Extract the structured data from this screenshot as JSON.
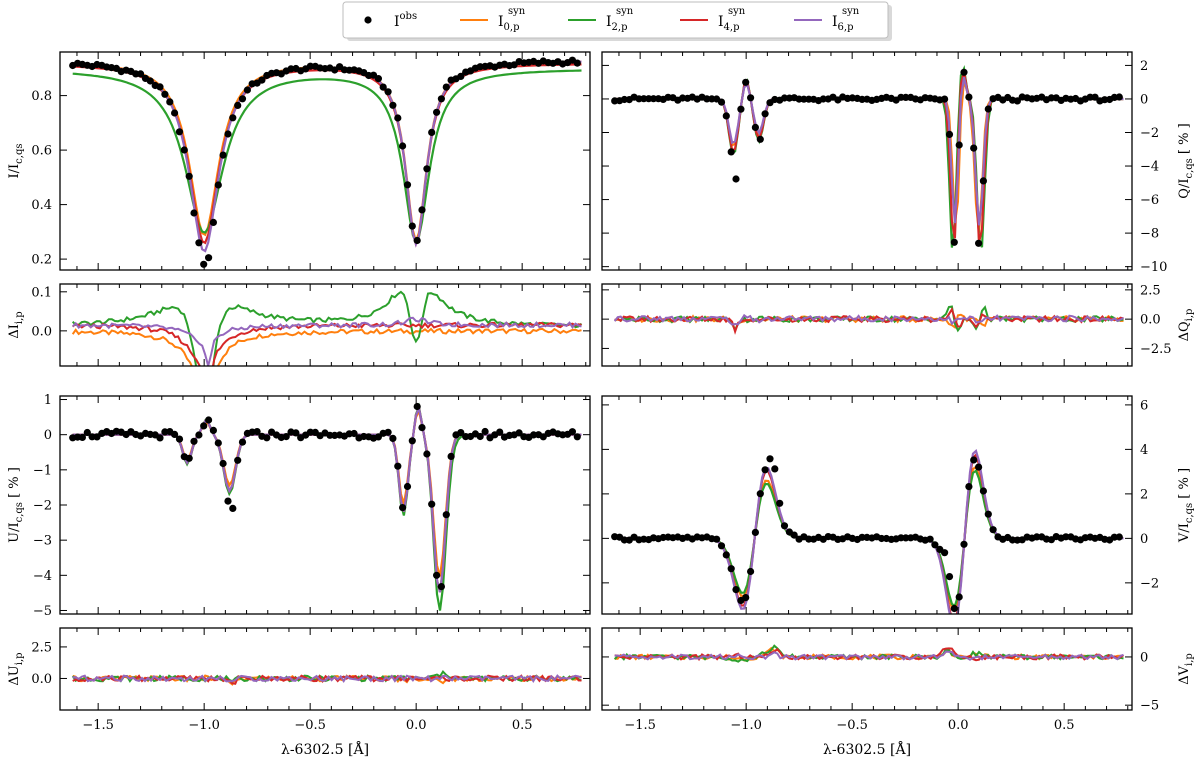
{
  "legend": {
    "placement": "top-center",
    "entries": [
      {
        "label": "I",
        "sup": "obs",
        "sub": "",
        "marker": "dot",
        "color": "#000000"
      },
      {
        "label": "I",
        "sup": "syn",
        "sub": "0,p",
        "marker": "line",
        "color": "#ff7f0e"
      },
      {
        "label": "I",
        "sup": "syn",
        "sub": "2,p",
        "marker": "line",
        "color": "#2ca02c"
      },
      {
        "label": "I",
        "sup": "syn",
        "sub": "4,p",
        "marker": "line",
        "color": "#d62728"
      },
      {
        "label": "I",
        "sup": "syn",
        "sub": "6,p",
        "marker": "line",
        "color": "#9467bd"
      }
    ]
  },
  "chart_data": [
    {
      "id": "I",
      "type": "line",
      "side": "left",
      "role": "profile",
      "ylabel": {
        "main": "I/I",
        "sub": "c,qs",
        "suffix": ""
      },
      "xlim": [
        -1.68,
        0.82
      ],
      "ylim": [
        0.16,
        0.96
      ],
      "yticks": [
        0.2,
        0.4,
        0.6,
        0.8
      ],
      "xticks": [
        -1.5,
        -1.0,
        -0.5,
        0.0,
        0.5
      ],
      "xticklabels": [],
      "lines": [
        {
          "kind": "absorption",
          "center": -1.0,
          "width": 0.085,
          "depths": {
            "obs": 0.73,
            "syn0": 0.64,
            "syn2": 0.6,
            "syn4": 0.66,
            "syn6": 0.7
          }
        },
        {
          "kind": "absorption",
          "center": 0.0,
          "width": 0.06,
          "depths": {
            "obs": 0.66,
            "syn0": 0.66,
            "syn2": 0.63,
            "syn4": 0.66,
            "syn6": 0.67
          }
        }
      ],
      "baselines": {
        "obs": 0.93,
        "syn0": 0.93,
        "syn2": 0.9,
        "syn4": 0.92,
        "syn6": 0.93
      }
    },
    {
      "id": "Q",
      "type": "line",
      "side": "right",
      "role": "profile",
      "ylabel": {
        "main": "Q/I",
        "sub": "c,qs",
        "suffix": " [ % ]"
      },
      "xlim": [
        -1.68,
        0.82
      ],
      "ylim": [
        -10.2,
        2.8
      ],
      "yticks": [
        -10,
        -8,
        -6,
        -4,
        -2,
        0,
        2
      ],
      "xticks": [
        -1.5,
        -1.0,
        -0.5,
        0.0,
        0.5
      ],
      "xticklabels": []
    },
    {
      "id": "dI",
      "type": "line",
      "side": "left",
      "role": "residual",
      "ylabel": {
        "main": "ΔI",
        "sub": "i,p",
        "suffix": ""
      },
      "xlim": [
        -1.68,
        0.82
      ],
      "ylim": [
        -0.09,
        0.12
      ],
      "yticks": [
        0.0,
        0.1
      ],
      "yticklabels": [
        "0.0",
        "0.1"
      ],
      "xticks": [
        -1.5,
        -1.0,
        -0.5,
        0.0,
        0.5
      ],
      "xticklabels": []
    },
    {
      "id": "dQ",
      "type": "line",
      "side": "right",
      "role": "residual",
      "ylabel": {
        "main": "ΔQ",
        "sub": "i,p",
        "suffix": ""
      },
      "xlim": [
        -1.68,
        0.82
      ],
      "ylim": [
        -4.0,
        3.0
      ],
      "yticks": [
        -2.5,
        0.0,
        2.5
      ],
      "yticklabels": [
        "−2.5",
        "0.0",
        "2.5"
      ],
      "xticks": [
        -1.5,
        -1.0,
        -0.5,
        0.0,
        0.5
      ],
      "xticklabels": []
    },
    {
      "id": "U",
      "type": "line",
      "side": "left",
      "role": "profile",
      "ylabel": {
        "main": "U/I",
        "sub": "c,qs",
        "suffix": " [ % ]"
      },
      "xlim": [
        -1.68,
        0.82
      ],
      "ylim": [
        -5.1,
        1.1
      ],
      "yticks": [
        -5,
        -4,
        -3,
        -2,
        -1,
        0,
        1
      ],
      "xticks": [
        -1.5,
        -1.0,
        -0.5,
        0.0,
        0.5
      ],
      "xticklabels": []
    },
    {
      "id": "V",
      "type": "line",
      "side": "right",
      "role": "profile",
      "ylabel": {
        "main": "V/I",
        "sub": "c,qs",
        "suffix": " [ % ]"
      },
      "xlim": [
        -1.68,
        0.82
      ],
      "ylim": [
        -3.4,
        6.4
      ],
      "yticks": [
        -2,
        0,
        2,
        4,
        6
      ],
      "xticks": [
        -1.5,
        -1.0,
        -0.5,
        0.0,
        0.5
      ],
      "xticklabels": []
    },
    {
      "id": "dU",
      "type": "line",
      "side": "left",
      "role": "residual",
      "ylabel": {
        "main": "ΔU",
        "sub": "i,p",
        "suffix": ""
      },
      "xlim": [
        -1.68,
        0.82
      ],
      "ylim": [
        -2.5,
        4.0
      ],
      "yticks": [
        0.0,
        2.5
      ],
      "yticklabels": [
        "0.0",
        "2.5"
      ],
      "xticks": [
        -1.5,
        -1.0,
        -0.5,
        0.0,
        0.5
      ],
      "xticklabels": [
        "−1.5",
        "−1.0",
        "−0.5",
        "0.0",
        "0.5"
      ],
      "xlabel": "λ-6302.5 [Å]"
    },
    {
      "id": "dV",
      "type": "line",
      "side": "right",
      "role": "residual",
      "ylabel": {
        "main": "ΔV",
        "sub": "i,p",
        "suffix": ""
      },
      "xlim": [
        -1.68,
        0.82
      ],
      "ylim": [
        -5.5,
        3.0
      ],
      "yticks": [
        -5,
        0
      ],
      "yticklabels": [
        "−5",
        "0"
      ],
      "xticks": [
        -1.5,
        -1.0,
        -0.5,
        0.0,
        0.5
      ],
      "xticklabels": [
        "−1.5",
        "−1.0",
        "−0.5",
        "0.0",
        "0.5"
      ],
      "xlabel": "λ-6302.5 [Å]"
    }
  ],
  "series": [
    {
      "key": "obs",
      "color": "#000000"
    },
    {
      "key": "syn0",
      "color": "#ff7f0e"
    },
    {
      "key": "syn2",
      "color": "#2ca02c"
    },
    {
      "key": "syn4",
      "color": "#d62728"
    },
    {
      "key": "syn6",
      "color": "#9467bd"
    }
  ]
}
